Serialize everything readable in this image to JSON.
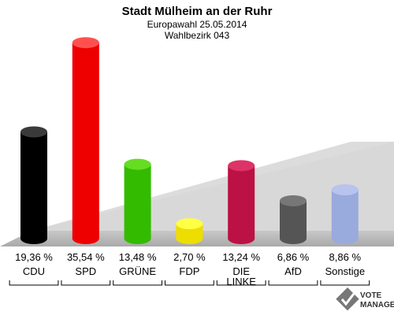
{
  "chart_data": {
    "type": "bar",
    "title": "Stadt Mülheim an der Ruhr",
    "subtitle_lines": [
      "Europawahl 25.05.2014",
      "Wahlbezirk 043"
    ],
    "unit": "%",
    "ylim": [
      0,
      40
    ],
    "grid": false,
    "categories": [
      {
        "label_lines": [
          "CDU"
        ],
        "value": 19.36,
        "value_label": "19,36 %",
        "color": "#000000",
        "top_color": "#3a3a3a"
      },
      {
        "label_lines": [
          "SPD"
        ],
        "value": 35.54,
        "value_label": "35,54 %",
        "color": "#ee0000",
        "top_color": "#ff5050"
      },
      {
        "label_lines": [
          "GRÜNE"
        ],
        "value": 13.48,
        "value_label": "13,48 %",
        "color": "#33bb00",
        "top_color": "#66dd22"
      },
      {
        "label_lines": [
          "FDP"
        ],
        "value": 2.7,
        "value_label": "2,70 %",
        "color": "#eedd00",
        "top_color": "#ffff44"
      },
      {
        "label_lines": [
          "DIE",
          "LINKE"
        ],
        "value": 13.24,
        "value_label": "13,24 %",
        "color": "#bb1144",
        "top_color": "#dd3366"
      },
      {
        "label_lines": [
          "AfD"
        ],
        "value": 6.86,
        "value_label": "6,86 %",
        "color": "#555555",
        "top_color": "#777777"
      },
      {
        "label_lines": [
          "Sonstige"
        ],
        "value": 8.86,
        "value_label": "8,86 %",
        "color": "#99aadd",
        "top_color": "#b8c4ee"
      }
    ]
  },
  "logo": {
    "lines": [
      "VOTE",
      "MANAGER"
    ],
    "icon": "checkmark-x-icon"
  }
}
